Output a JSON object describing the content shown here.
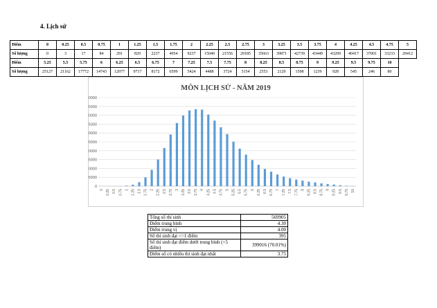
{
  "heading": "4.   Lịch sử",
  "dist_table": {
    "score_label": "Điểm",
    "count_label": "Số lượng",
    "row1_scores": [
      "0",
      "0.25",
      "0.5",
      "0.75",
      "1",
      "1.25",
      "1.5",
      "1.75",
      "2",
      "2.25",
      "2.5",
      "2.75",
      "3",
      "3.25",
      "3.5",
      "3.75",
      "4",
      "4.25",
      "4.5",
      "4.75",
      "5"
    ],
    "row1_counts": [
      "0",
      "3",
      "17",
      "84",
      "291",
      "829",
      "2237",
      "4954",
      "9237",
      "15040",
      "21556",
      "29185",
      "35663",
      "39871",
      "42739",
      "43449",
      "43209",
      "40417",
      "37001",
      "33233",
      "29412"
    ],
    "row2_scores": [
      "5.25",
      "5.5",
      "5.75",
      "6",
      "6.25",
      "6.5",
      "6.75",
      "7",
      "7.25",
      "7.5",
      "7.75",
      "8",
      "8.25",
      "8.5",
      "8.75",
      "9",
      "9.25",
      "9.5",
      "9.75",
      "10"
    ],
    "row2_counts": [
      "25127",
      "21162",
      "17772",
      "14743",
      "12077",
      "9717",
      "8172",
      "6599",
      "5424",
      "4488",
      "3724",
      "3154",
      "2553",
      "2129",
      "1598",
      "1239",
      "928",
      "545",
      "246",
      "80"
    ]
  },
  "chart_data": {
    "type": "bar",
    "title": "MÔN LỊCH SỬ - NĂM 2019",
    "xlabel": "",
    "ylabel": "",
    "ylim": [
      0,
      50000
    ],
    "yticks": [
      "0",
      "5000",
      "10000",
      "15000",
      "20000",
      "25000",
      "30000",
      "35000",
      "40000",
      "45000",
      "50000"
    ],
    "categories": [
      "0",
      "0.25",
      "0.5",
      "0.75",
      "1",
      "1.25",
      "1.5",
      "1.75",
      "2",
      "2.25",
      "2.5",
      "2.75",
      "3",
      "3.25",
      "3.5",
      "3.75",
      "4",
      "4.25",
      "4.5",
      "4.75",
      "5",
      "5.25",
      "5.5",
      "5.75",
      "6",
      "6.25",
      "6.5",
      "6.75",
      "7",
      "7.25",
      "7.5",
      "7.75",
      "8",
      "8.25",
      "8.5",
      "8.75",
      "9",
      "9.25",
      "9.5",
      "9.75",
      "10"
    ],
    "values": [
      0,
      3,
      17,
      84,
      291,
      829,
      2237,
      4954,
      9237,
      15040,
      21556,
      29185,
      35663,
      39871,
      42739,
      43449,
      43209,
      40417,
      37001,
      33233,
      29412,
      25127,
      21162,
      17772,
      14743,
      12077,
      9717,
      8172,
      6599,
      5424,
      4488,
      3724,
      3154,
      2553,
      2129,
      1598,
      1239,
      928,
      545,
      246,
      80
    ],
    "grid": true,
    "legend": "none",
    "bar_color": "#5b9bd5",
    "grid_color": "#d9d9d9"
  },
  "stats": [
    {
      "label": "Tổng số thí sinh",
      "value": "569905"
    },
    {
      "label": "Điểm trung bình",
      "value": "4.30"
    },
    {
      "label": "Điểm trung vị",
      "value": "4.00"
    },
    {
      "label": "Số thí sinh đạt <=1 điểm",
      "value": "395"
    },
    {
      "label": "Số thí sinh đạt điểm dưới trung bình (<5 điểm)",
      "value": "399016 (70.01%)"
    },
    {
      "label": "Điểm số có nhiều thí sinh đạt nhất",
      "value": "3.75"
    }
  ]
}
